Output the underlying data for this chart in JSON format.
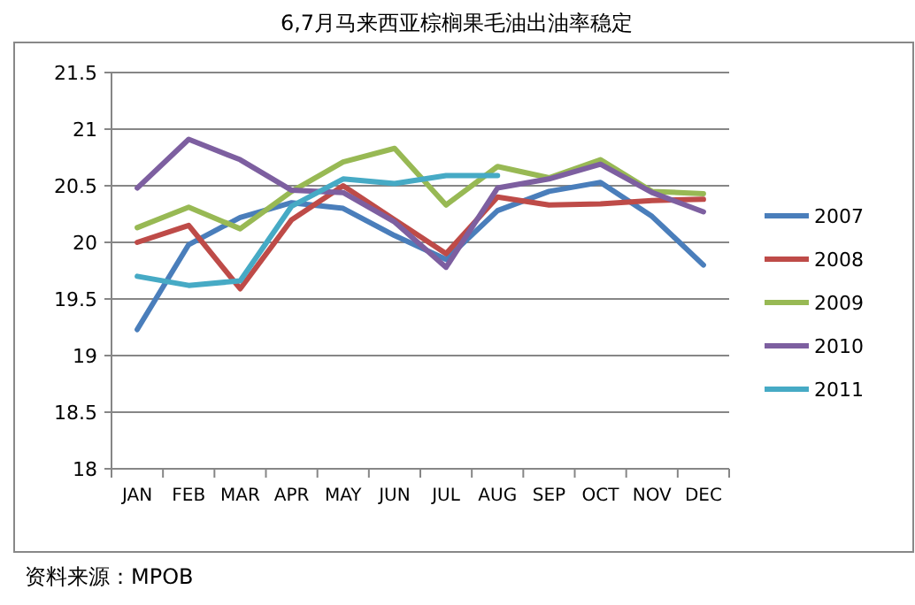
{
  "chart_data": {
    "type": "line",
    "title": "6,7月马来西亚棕榈果毛油出油率稳定",
    "annotations": [
      "资料来源：MPOB"
    ],
    "categories": [
      "JAN",
      "FEB",
      "MAR",
      "APR",
      "MAY",
      "JUN",
      "JUL",
      "AUG",
      "SEP",
      "OCT",
      "NOV",
      "DEC"
    ],
    "series": [
      {
        "name": "2007",
        "color": "#4a7ebb",
        "values": [
          19.23,
          19.98,
          20.22,
          20.35,
          20.3,
          20.06,
          19.85,
          20.28,
          20.45,
          20.53,
          20.23,
          19.8
        ]
      },
      {
        "name": "2008",
        "color": "#be4b48",
        "values": [
          20.0,
          20.15,
          19.59,
          20.2,
          20.5,
          20.2,
          19.9,
          20.4,
          20.33,
          20.34,
          20.37,
          20.38
        ]
      },
      {
        "name": "2009",
        "color": "#98b954",
        "values": [
          20.13,
          20.31,
          20.12,
          20.45,
          20.71,
          20.83,
          20.33,
          20.67,
          20.57,
          20.73,
          20.45,
          20.43
        ]
      },
      {
        "name": "2010",
        "color": "#7d5fa0",
        "values": [
          20.48,
          20.91,
          20.73,
          20.46,
          20.44,
          20.18,
          19.78,
          20.48,
          20.56,
          20.69,
          20.44,
          20.27
        ]
      },
      {
        "name": "2011",
        "color": "#46aac5",
        "values": [
          19.7,
          19.62,
          19.66,
          20.32,
          20.56,
          20.52,
          20.59,
          20.59,
          null,
          null,
          null,
          null
        ]
      }
    ],
    "ylim": [
      18,
      21.5
    ],
    "yticks": [
      18,
      18.5,
      19,
      19.5,
      20,
      20.5,
      21,
      21.5
    ],
    "grid": "y",
    "legend": "right",
    "marker": "none",
    "line_style": "solid"
  }
}
